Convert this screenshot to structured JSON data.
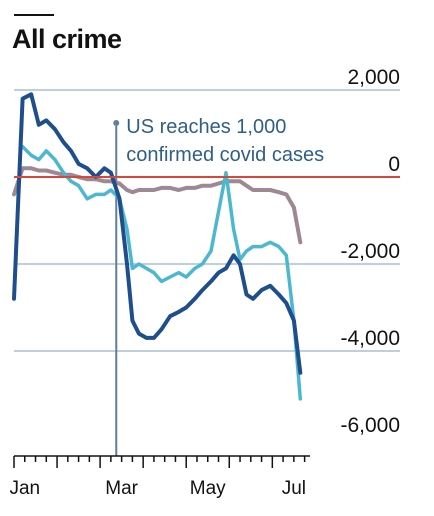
{
  "title": "All crime",
  "chart_data": {
    "type": "line",
    "title": "All crime",
    "ylim": [
      -6000,
      2000
    ],
    "yticks": [
      {
        "value": 2000,
        "label": "2,000"
      },
      {
        "value": 0,
        "label": "0"
      },
      {
        "value": -2000,
        "label": "-2,000"
      },
      {
        "value": -4000,
        "label": "-4,000"
      },
      {
        "value": -6000,
        "label": "-6,000"
      }
    ],
    "xticks": [
      {
        "week": 1,
        "label": "Jan"
      },
      {
        "week": 10,
        "label": "Mar"
      },
      {
        "week": 18,
        "label": "May"
      },
      {
        "week": 26,
        "label": "Jul"
      }
    ],
    "xlim": [
      0,
      27.5
    ],
    "grid": "horizontal",
    "annotation": {
      "week": 9.5,
      "lines": [
        "US reaches 1,000",
        "confirmed covid cases"
      ]
    },
    "colors": {
      "dark": "#1f4e8c",
      "light": "#4cb8cf",
      "mauve": "#9e8894",
      "zero": "#d9463a",
      "grid": "#a9bfd4",
      "marker": "#5f7f98"
    },
    "series": [
      {
        "key": "dark",
        "x": [
          0,
          0.8,
          1.6,
          2.3,
          3.0,
          3.8,
          4.6,
          5.3,
          6.0,
          6.8,
          7.6,
          8.4,
          9.0,
          9.8,
          10.5,
          11.0,
          11.6,
          12.3,
          13.0,
          13.7,
          14.5,
          15.3,
          16.0,
          16.8,
          17.5,
          18.3,
          19.0,
          19.7,
          20.4,
          21.0,
          21.6,
          22.2,
          23.0,
          23.8,
          24.6,
          25.3,
          26.0,
          26.6
        ],
        "values": [
          -2800,
          1800,
          1900,
          1200,
          1300,
          1100,
          800,
          600,
          300,
          200,
          0,
          200,
          100,
          -500,
          -2000,
          -3300,
          -3600,
          -3700,
          -3700,
          -3500,
          -3200,
          -3100,
          -3000,
          -2800,
          -2600,
          -2400,
          -2200,
          -2100,
          -1800,
          -2000,
          -2700,
          -2800,
          -2600,
          -2500,
          -2700,
          -2900,
          -3300,
          -4500
        ]
      },
      {
        "key": "light",
        "x": [
          0.8,
          1.6,
          2.3,
          3.0,
          3.8,
          4.6,
          5.3,
          6.0,
          6.8,
          7.6,
          8.4,
          9.0,
          9.8,
          10.5,
          11.0,
          11.6,
          12.3,
          13.0,
          13.7,
          14.5,
          15.3,
          16.0,
          16.8,
          17.5,
          18.3,
          19.0,
          19.7,
          20.4,
          21.0,
          21.6,
          22.2,
          23.0,
          23.8,
          24.6,
          25.3,
          26.0,
          26.6
        ],
        "values": [
          700,
          500,
          400,
          600,
          400,
          100,
          -100,
          -200,
          -500,
          -400,
          -400,
          -300,
          -500,
          -1200,
          -2100,
          -2000,
          -2100,
          -2200,
          -2400,
          -2300,
          -2200,
          -2300,
          -2100,
          -2000,
          -1700,
          -800,
          100,
          -1200,
          -1900,
          -1700,
          -1600,
          -1600,
          -1500,
          -1600,
          -1800,
          -3300,
          -5100
        ]
      },
      {
        "key": "mauve",
        "x": [
          0,
          0.8,
          1.6,
          2.3,
          3.0,
          3.8,
          4.6,
          5.3,
          6.0,
          6.8,
          7.6,
          8.4,
          9.0,
          9.8,
          10.5,
          11.0,
          11.6,
          12.3,
          13.0,
          13.7,
          14.5,
          15.3,
          16.0,
          16.8,
          17.5,
          18.3,
          19.0,
          19.7,
          20.4,
          21.0,
          21.6,
          22.2,
          23.0,
          23.8,
          24.6,
          25.3,
          26.0,
          26.6
        ],
        "values": [
          -400,
          200,
          200,
          150,
          150,
          100,
          50,
          50,
          0,
          -50,
          -50,
          -100,
          -100,
          -150,
          -300,
          -350,
          -300,
          -300,
          -300,
          -250,
          -250,
          -300,
          -250,
          -250,
          -200,
          -200,
          -150,
          -100,
          -100,
          -100,
          -200,
          -300,
          -300,
          -300,
          -350,
          -400,
          -700,
          -1500
        ]
      }
    ]
  }
}
